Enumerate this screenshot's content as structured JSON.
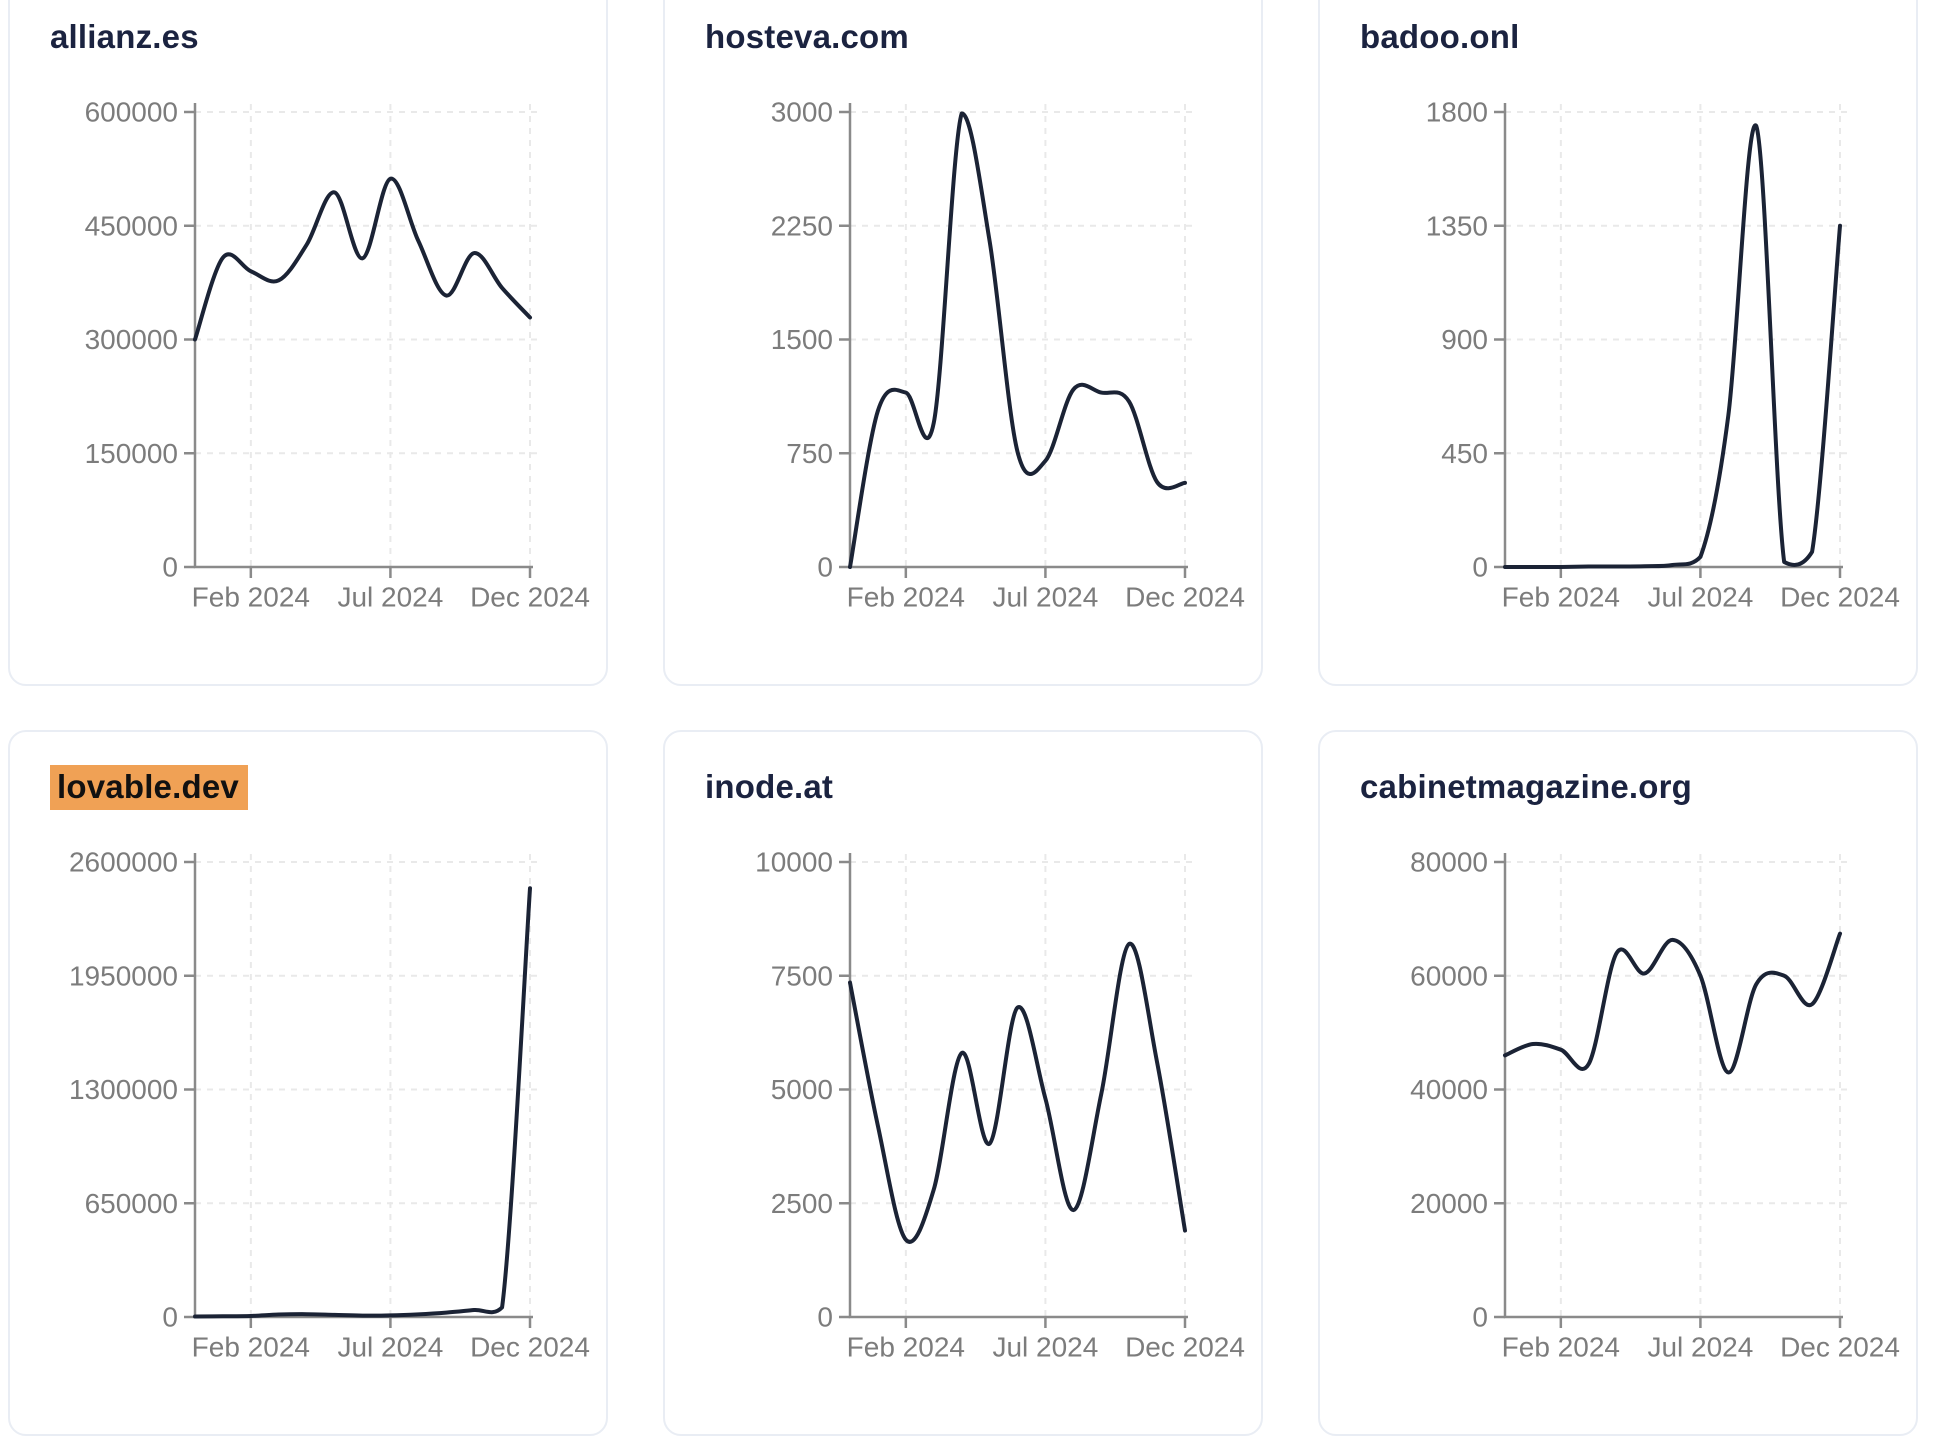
{
  "style": {
    "page_background": "#ffffff",
    "card_border_color": "#e9edf4",
    "title_color": "#1b2340",
    "highlight_color": "#f0a155",
    "highlight_text_color": "#111111",
    "line_color": "#1b2335",
    "axis_color": "#8a8a8a",
    "tick_label_color": "#7c7c7c",
    "grid_color": "#e9e9e9"
  },
  "chart_data": [
    {
      "type": "line",
      "title": "allianz.es",
      "highlighted": false,
      "x_tick_labels": [
        "Feb 2024",
        "Jul 2024",
        "Dec 2024"
      ],
      "x_tick_indices": [
        2,
        7,
        12
      ],
      "y_ticks": [
        0,
        150000,
        300000,
        450000,
        600000
      ],
      "ylim": [
        0,
        600000
      ],
      "grid": true,
      "legend": false,
      "values": [
        300000,
        408000,
        390000,
        378000,
        425000,
        494000,
        407000,
        512000,
        430000,
        358000,
        414000,
        368000,
        329000
      ]
    },
    {
      "type": "line",
      "title": "hosteva.com",
      "highlighted": false,
      "x_tick_labels": [
        "Feb 2024",
        "Jul 2024",
        "Dec 2024"
      ],
      "x_tick_indices": [
        2,
        7,
        12
      ],
      "y_ticks": [
        0,
        750,
        1500,
        2250,
        3000
      ],
      "ylim": [
        0,
        3000
      ],
      "grid": true,
      "legend": false,
      "values": [
        0,
        1030,
        1150,
        950,
        2990,
        2150,
        760,
        700,
        1170,
        1150,
        1090,
        560,
        555
      ]
    },
    {
      "type": "line",
      "title": "badoo.onl",
      "highlighted": false,
      "x_tick_labels": [
        "Feb 2024",
        "Jul 2024",
        "Dec 2024"
      ],
      "x_tick_indices": [
        2,
        7,
        12
      ],
      "y_ticks": [
        0,
        450,
        900,
        1350,
        1800
      ],
      "ylim": [
        0,
        1800
      ],
      "grid": true,
      "legend": false,
      "values": [
        0,
        0,
        0,
        2,
        2,
        3,
        8,
        40,
        600,
        1745,
        20,
        60,
        1350
      ]
    },
    {
      "type": "line",
      "title": "lovable.dev",
      "highlighted": true,
      "x_tick_labels": [
        "Feb 2024",
        "Jul 2024",
        "Dec 2024"
      ],
      "x_tick_indices": [
        2,
        7,
        12
      ],
      "y_ticks": [
        0,
        650000,
        1300000,
        1950000,
        2600000
      ],
      "ylim": [
        0,
        2600000
      ],
      "grid": true,
      "legend": false,
      "values": [
        3000,
        4000,
        6000,
        14000,
        16000,
        12000,
        8000,
        9000,
        15000,
        25000,
        40000,
        55000,
        2450000
      ]
    },
    {
      "type": "line",
      "title": "inode.at",
      "highlighted": false,
      "x_tick_labels": [
        "Feb 2024",
        "Jul 2024",
        "Dec 2024"
      ],
      "x_tick_indices": [
        2,
        7,
        12
      ],
      "y_ticks": [
        0,
        2500,
        5000,
        7500,
        10000
      ],
      "ylim": [
        0,
        10000
      ],
      "grid": true,
      "legend": false,
      "values": [
        7350,
        4200,
        1700,
        2800,
        5800,
        3810,
        6800,
        4800,
        2350,
        4900,
        8200,
        5600,
        1900
      ]
    },
    {
      "type": "line",
      "title": "cabinetmagazine.org",
      "highlighted": false,
      "x_tick_labels": [
        "Feb 2024",
        "Jul 2024",
        "Dec 2024"
      ],
      "x_tick_indices": [
        2,
        7,
        12
      ],
      "y_ticks": [
        0,
        20000,
        40000,
        60000,
        80000
      ],
      "ylim": [
        0,
        80000
      ],
      "grid": true,
      "legend": false,
      "values": [
        46000,
        48000,
        47000,
        44500,
        64000,
        60400,
        66300,
        60000,
        43000,
        58500,
        60000,
        55000,
        67400
      ]
    }
  ]
}
